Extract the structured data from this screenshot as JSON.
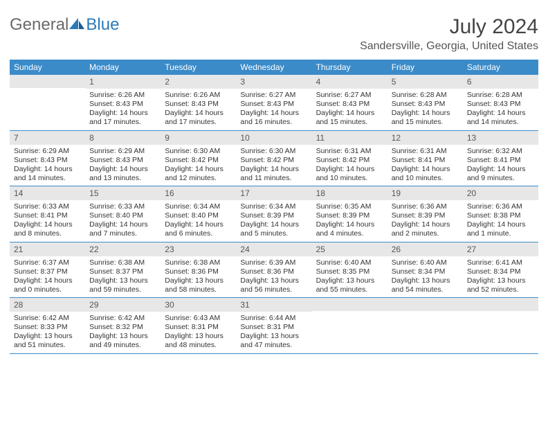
{
  "brand": {
    "part1": "General",
    "part2": "Blue"
  },
  "title": "July 2024",
  "location": "Sandersville, Georgia, United States",
  "colors": {
    "header_bg": "#3b8bc9",
    "header_text": "#ffffff",
    "day_bar_bg": "#e7e7e7",
    "text": "#333333",
    "rule": "#3b8bc9"
  },
  "weekdays": [
    "Sunday",
    "Monday",
    "Tuesday",
    "Wednesday",
    "Thursday",
    "Friday",
    "Saturday"
  ],
  "weeks": [
    [
      {
        "day": "",
        "sunrise": "",
        "sunset": "",
        "daylight": ""
      },
      {
        "day": "1",
        "sunrise": "Sunrise: 6:26 AM",
        "sunset": "Sunset: 8:43 PM",
        "daylight": "Daylight: 14 hours and 17 minutes."
      },
      {
        "day": "2",
        "sunrise": "Sunrise: 6:26 AM",
        "sunset": "Sunset: 8:43 PM",
        "daylight": "Daylight: 14 hours and 17 minutes."
      },
      {
        "day": "3",
        "sunrise": "Sunrise: 6:27 AM",
        "sunset": "Sunset: 8:43 PM",
        "daylight": "Daylight: 14 hours and 16 minutes."
      },
      {
        "day": "4",
        "sunrise": "Sunrise: 6:27 AM",
        "sunset": "Sunset: 8:43 PM",
        "daylight": "Daylight: 14 hours and 15 minutes."
      },
      {
        "day": "5",
        "sunrise": "Sunrise: 6:28 AM",
        "sunset": "Sunset: 8:43 PM",
        "daylight": "Daylight: 14 hours and 15 minutes."
      },
      {
        "day": "6",
        "sunrise": "Sunrise: 6:28 AM",
        "sunset": "Sunset: 8:43 PM",
        "daylight": "Daylight: 14 hours and 14 minutes."
      }
    ],
    [
      {
        "day": "7",
        "sunrise": "Sunrise: 6:29 AM",
        "sunset": "Sunset: 8:43 PM",
        "daylight": "Daylight: 14 hours and 14 minutes."
      },
      {
        "day": "8",
        "sunrise": "Sunrise: 6:29 AM",
        "sunset": "Sunset: 8:43 PM",
        "daylight": "Daylight: 14 hours and 13 minutes."
      },
      {
        "day": "9",
        "sunrise": "Sunrise: 6:30 AM",
        "sunset": "Sunset: 8:42 PM",
        "daylight": "Daylight: 14 hours and 12 minutes."
      },
      {
        "day": "10",
        "sunrise": "Sunrise: 6:30 AM",
        "sunset": "Sunset: 8:42 PM",
        "daylight": "Daylight: 14 hours and 11 minutes."
      },
      {
        "day": "11",
        "sunrise": "Sunrise: 6:31 AM",
        "sunset": "Sunset: 8:42 PM",
        "daylight": "Daylight: 14 hours and 10 minutes."
      },
      {
        "day": "12",
        "sunrise": "Sunrise: 6:31 AM",
        "sunset": "Sunset: 8:41 PM",
        "daylight": "Daylight: 14 hours and 10 minutes."
      },
      {
        "day": "13",
        "sunrise": "Sunrise: 6:32 AM",
        "sunset": "Sunset: 8:41 PM",
        "daylight": "Daylight: 14 hours and 9 minutes."
      }
    ],
    [
      {
        "day": "14",
        "sunrise": "Sunrise: 6:33 AM",
        "sunset": "Sunset: 8:41 PM",
        "daylight": "Daylight: 14 hours and 8 minutes."
      },
      {
        "day": "15",
        "sunrise": "Sunrise: 6:33 AM",
        "sunset": "Sunset: 8:40 PM",
        "daylight": "Daylight: 14 hours and 7 minutes."
      },
      {
        "day": "16",
        "sunrise": "Sunrise: 6:34 AM",
        "sunset": "Sunset: 8:40 PM",
        "daylight": "Daylight: 14 hours and 6 minutes."
      },
      {
        "day": "17",
        "sunrise": "Sunrise: 6:34 AM",
        "sunset": "Sunset: 8:39 PM",
        "daylight": "Daylight: 14 hours and 5 minutes."
      },
      {
        "day": "18",
        "sunrise": "Sunrise: 6:35 AM",
        "sunset": "Sunset: 8:39 PM",
        "daylight": "Daylight: 14 hours and 4 minutes."
      },
      {
        "day": "19",
        "sunrise": "Sunrise: 6:36 AM",
        "sunset": "Sunset: 8:39 PM",
        "daylight": "Daylight: 14 hours and 2 minutes."
      },
      {
        "day": "20",
        "sunrise": "Sunrise: 6:36 AM",
        "sunset": "Sunset: 8:38 PM",
        "daylight": "Daylight: 14 hours and 1 minute."
      }
    ],
    [
      {
        "day": "21",
        "sunrise": "Sunrise: 6:37 AM",
        "sunset": "Sunset: 8:37 PM",
        "daylight": "Daylight: 14 hours and 0 minutes."
      },
      {
        "day": "22",
        "sunrise": "Sunrise: 6:38 AM",
        "sunset": "Sunset: 8:37 PM",
        "daylight": "Daylight: 13 hours and 59 minutes."
      },
      {
        "day": "23",
        "sunrise": "Sunrise: 6:38 AM",
        "sunset": "Sunset: 8:36 PM",
        "daylight": "Daylight: 13 hours and 58 minutes."
      },
      {
        "day": "24",
        "sunrise": "Sunrise: 6:39 AM",
        "sunset": "Sunset: 8:36 PM",
        "daylight": "Daylight: 13 hours and 56 minutes."
      },
      {
        "day": "25",
        "sunrise": "Sunrise: 6:40 AM",
        "sunset": "Sunset: 8:35 PM",
        "daylight": "Daylight: 13 hours and 55 minutes."
      },
      {
        "day": "26",
        "sunrise": "Sunrise: 6:40 AM",
        "sunset": "Sunset: 8:34 PM",
        "daylight": "Daylight: 13 hours and 54 minutes."
      },
      {
        "day": "27",
        "sunrise": "Sunrise: 6:41 AM",
        "sunset": "Sunset: 8:34 PM",
        "daylight": "Daylight: 13 hours and 52 minutes."
      }
    ],
    [
      {
        "day": "28",
        "sunrise": "Sunrise: 6:42 AM",
        "sunset": "Sunset: 8:33 PM",
        "daylight": "Daylight: 13 hours and 51 minutes."
      },
      {
        "day": "29",
        "sunrise": "Sunrise: 6:42 AM",
        "sunset": "Sunset: 8:32 PM",
        "daylight": "Daylight: 13 hours and 49 minutes."
      },
      {
        "day": "30",
        "sunrise": "Sunrise: 6:43 AM",
        "sunset": "Sunset: 8:31 PM",
        "daylight": "Daylight: 13 hours and 48 minutes."
      },
      {
        "day": "31",
        "sunrise": "Sunrise: 6:44 AM",
        "sunset": "Sunset: 8:31 PM",
        "daylight": "Daylight: 13 hours and 47 minutes."
      },
      {
        "day": "",
        "sunrise": "",
        "sunset": "",
        "daylight": ""
      },
      {
        "day": "",
        "sunrise": "",
        "sunset": "",
        "daylight": ""
      },
      {
        "day": "",
        "sunrise": "",
        "sunset": "",
        "daylight": ""
      }
    ]
  ]
}
